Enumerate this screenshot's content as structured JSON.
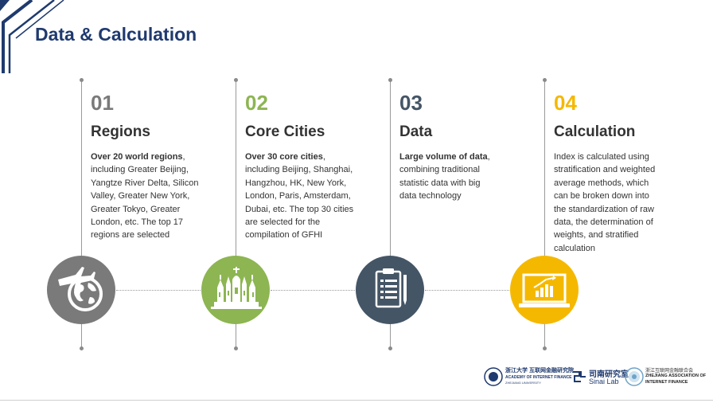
{
  "title": "Data & Calculation",
  "colors": {
    "navy": "#1f3a6e",
    "gray": "#7a7a7a",
    "green": "#8db552",
    "slate": "#445566",
    "gold": "#f5b800"
  },
  "steps": [
    {
      "num": "01",
      "heading": "Regions",
      "bold": "Over 20 world regions",
      "text": ", including Greater Beijing, Yangtze River Delta, Silicon Valley, Greater New York, Greater Tokyo, Greater London, etc. The top 17 regions are selected",
      "icon": "globe-plane-icon"
    },
    {
      "num": "02",
      "heading": "Core Cities",
      "bold": "Over 30 core cities",
      "text": ", including Beijing, Shanghai, Hangzhou, HK, New York, London, Paris, Amsterdam, Dubai, etc. The top 30 cities are selected for the compilation of GFHI",
      "icon": "city-buildings-icon"
    },
    {
      "num": "03",
      "heading": "Data",
      "bold": "Large volume of data",
      "text": ", combining traditional statistic data with big data technology",
      "icon": "clipboard-icon"
    },
    {
      "num": "04",
      "heading": "Calculation",
      "bold": "",
      "text": "Index is calculated using stratification and weighted average methods, which can be broken down into the standardization of raw data, the determination of weights, and stratified calculation",
      "icon": "laptop-chart-icon"
    }
  ],
  "footer": {
    "logo1_cn": "浙江大学 互联网金融研究院",
    "logo1_en": "ACADEMY OF INTERNET FINANCE",
    "logo1_sub": "ZHEJIANG UNIVERSITY",
    "logo2_cn": "司南研究室",
    "logo2_en": "Sinai Lab",
    "logo3_cn": "浙江互联网金融联合会",
    "logo3_en1": "ZHEJIANG ASSOCIATION OF",
    "logo3_en2": "INTERNET FINANCE"
  }
}
